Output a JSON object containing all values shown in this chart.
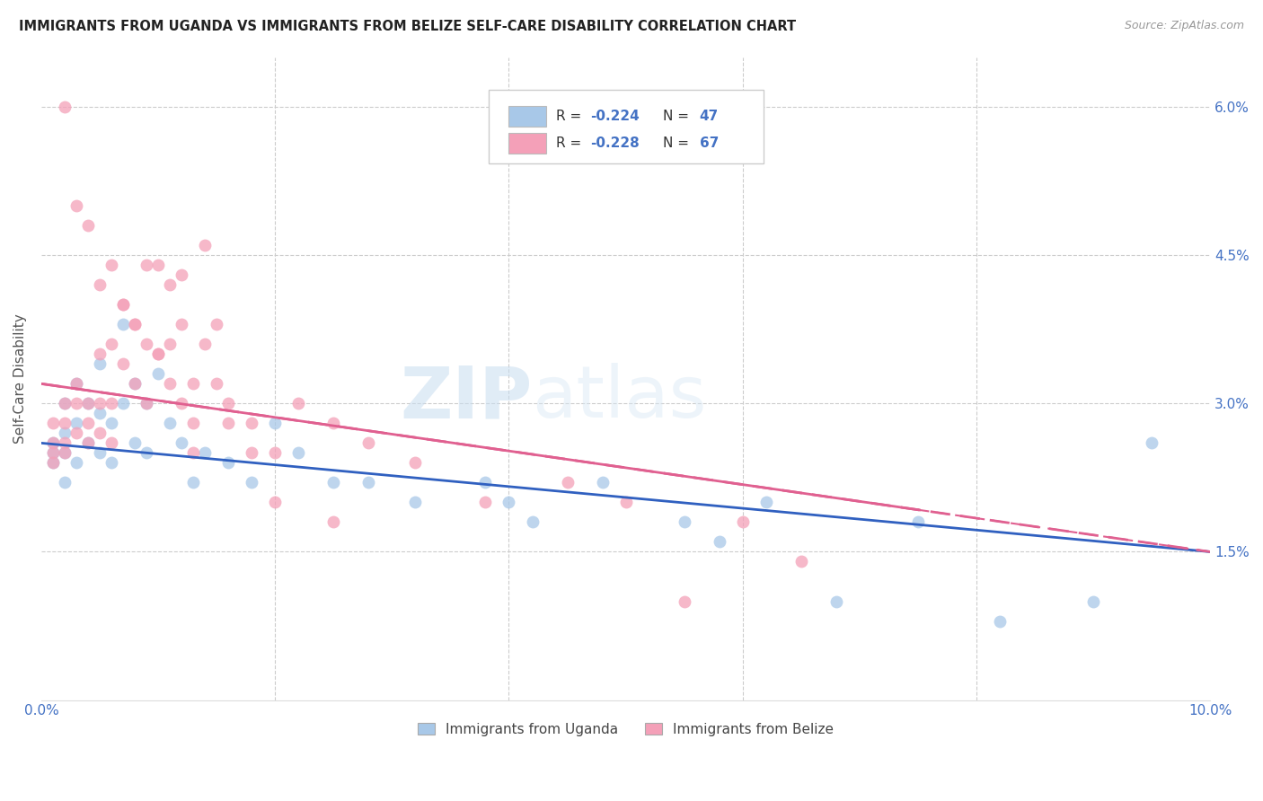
{
  "title": "IMMIGRANTS FROM UGANDA VS IMMIGRANTS FROM BELIZE SELF-CARE DISABILITY CORRELATION CHART",
  "source": "Source: ZipAtlas.com",
  "ylabel": "Self-Care Disability",
  "xlim": [
    0.0,
    0.1
  ],
  "ylim": [
    0.0,
    0.065
  ],
  "xtick_vals": [
    0.0,
    0.02,
    0.04,
    0.06,
    0.08,
    0.1
  ],
  "xticklabels": [
    "0.0%",
    "",
    "",
    "",
    "",
    "10.0%"
  ],
  "ytick_vals": [
    0.015,
    0.03,
    0.045,
    0.06
  ],
  "yticklabels_right": [
    "1.5%",
    "3.0%",
    "4.5%",
    "6.0%"
  ],
  "color_uganda": "#a8c8e8",
  "color_belize": "#f4a0b8",
  "color_line_uganda": "#3060c0",
  "color_line_belize": "#e06090",
  "color_axis": "#4472c4",
  "watermark": "ZIPatlas",
  "uganda_line_start": 0.026,
  "uganda_line_end": 0.015,
  "belize_line_start": 0.032,
  "belize_line_end": 0.015,
  "uganda_x": [
    0.001,
    0.001,
    0.001,
    0.002,
    0.002,
    0.002,
    0.002,
    0.003,
    0.003,
    0.003,
    0.004,
    0.004,
    0.005,
    0.005,
    0.005,
    0.006,
    0.006,
    0.007,
    0.007,
    0.008,
    0.008,
    0.009,
    0.009,
    0.01,
    0.011,
    0.012,
    0.013,
    0.014,
    0.016,
    0.018,
    0.02,
    0.022,
    0.025,
    0.028,
    0.032,
    0.038,
    0.04,
    0.042,
    0.048,
    0.055,
    0.058,
    0.062,
    0.068,
    0.075,
    0.082,
    0.09,
    0.095
  ],
  "uganda_y": [
    0.026,
    0.025,
    0.024,
    0.03,
    0.027,
    0.025,
    0.022,
    0.032,
    0.028,
    0.024,
    0.03,
    0.026,
    0.034,
    0.029,
    0.025,
    0.028,
    0.024,
    0.038,
    0.03,
    0.032,
    0.026,
    0.03,
    0.025,
    0.033,
    0.028,
    0.026,
    0.022,
    0.025,
    0.024,
    0.022,
    0.028,
    0.025,
    0.022,
    0.022,
    0.02,
    0.022,
    0.02,
    0.018,
    0.022,
    0.018,
    0.016,
    0.02,
    0.01,
    0.018,
    0.008,
    0.01,
    0.026
  ],
  "belize_x": [
    0.001,
    0.001,
    0.001,
    0.001,
    0.002,
    0.002,
    0.002,
    0.002,
    0.003,
    0.003,
    0.003,
    0.004,
    0.004,
    0.004,
    0.005,
    0.005,
    0.005,
    0.006,
    0.006,
    0.006,
    0.007,
    0.007,
    0.008,
    0.008,
    0.009,
    0.009,
    0.01,
    0.01,
    0.011,
    0.011,
    0.012,
    0.012,
    0.013,
    0.013,
    0.014,
    0.014,
    0.015,
    0.016,
    0.018,
    0.02,
    0.022,
    0.025,
    0.028,
    0.032,
    0.038,
    0.045,
    0.05,
    0.055,
    0.06,
    0.065,
    0.002,
    0.003,
    0.004,
    0.005,
    0.006,
    0.007,
    0.008,
    0.009,
    0.01,
    0.011,
    0.012,
    0.013,
    0.015,
    0.016,
    0.018,
    0.02,
    0.025
  ],
  "belize_y": [
    0.028,
    0.026,
    0.025,
    0.024,
    0.03,
    0.028,
    0.026,
    0.025,
    0.032,
    0.03,
    0.027,
    0.028,
    0.026,
    0.03,
    0.035,
    0.03,
    0.027,
    0.036,
    0.03,
    0.026,
    0.04,
    0.034,
    0.038,
    0.032,
    0.036,
    0.03,
    0.044,
    0.035,
    0.042,
    0.036,
    0.043,
    0.038,
    0.032,
    0.028,
    0.036,
    0.046,
    0.038,
    0.03,
    0.028,
    0.025,
    0.03,
    0.028,
    0.026,
    0.024,
    0.02,
    0.022,
    0.02,
    0.01,
    0.018,
    0.014,
    0.06,
    0.05,
    0.048,
    0.042,
    0.044,
    0.04,
    0.038,
    0.044,
    0.035,
    0.032,
    0.03,
    0.025,
    0.032,
    0.028,
    0.025,
    0.02,
    0.018
  ]
}
